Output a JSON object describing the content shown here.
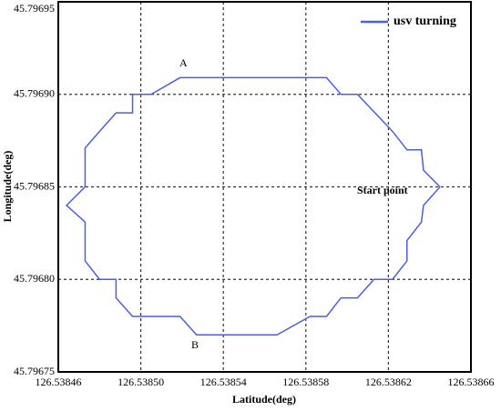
{
  "chart_data": {
    "type": "line",
    "x_label": "Latitude(deg)",
    "y_label": "Longitude(deg)",
    "series": [
      {
        "name": "usv turning",
        "color": "#4a5ee8",
        "x": [
          126.538645,
          126.538637,
          126.538636,
          126.538629,
          126.538622,
          126.538605,
          126.538597,
          126.53859,
          126.538519,
          126.538505,
          126.538496,
          126.538496,
          126.538488,
          126.53848,
          126.538473,
          126.538473,
          126.538464,
          126.538473,
          126.538473,
          126.53848,
          126.538488,
          126.538488,
          126.538496,
          126.538519,
          126.538527,
          126.538566,
          126.538582,
          126.53859,
          126.538597,
          126.538605,
          126.538613,
          126.538622,
          126.538629,
          126.538629,
          126.538636,
          126.538637,
          126.538645
        ],
        "values": [
          45.79685,
          45.796859,
          45.79687,
          45.79687,
          45.79688,
          45.7969,
          45.7969,
          45.796909,
          45.796909,
          45.7969,
          45.7969,
          45.79689,
          45.79689,
          45.79688,
          45.796871,
          45.79685,
          45.79684,
          45.796831,
          45.79681,
          45.7968,
          45.7968,
          45.79679,
          45.79678,
          45.79678,
          45.79677,
          45.79677,
          45.79678,
          45.79678,
          45.79679,
          45.79679,
          45.7968,
          45.7968,
          45.79681,
          45.796821,
          45.796831,
          45.79684,
          45.79685
        ]
      }
    ],
    "annotations": [
      "A",
      "B",
      "Start point"
    ],
    "xlim": [
      126.53846,
      126.53866
    ],
    "xticks": [
      126.53846,
      {
        "value": 126.5385,
        "label": "126.53850"
      },
      126.53854,
      126.53858,
      126.53862,
      126.53866
    ],
    "ylim": [
      45.79675,
      45.79695
    ],
    "yticks": [
      {
        "value": 45.79675,
        "label": "45.79675"
      },
      {
        "value": 45.7968,
        "label": "45.79680"
      },
      {
        "value": 45.79685,
        "label": "45.79685"
      },
      {
        "value": 45.7969,
        "label": "45.79690"
      },
      {
        "value": 45.79695,
        "label": "45.79695"
      }
    ],
    "grid": true,
    "legend": "upper right"
  }
}
